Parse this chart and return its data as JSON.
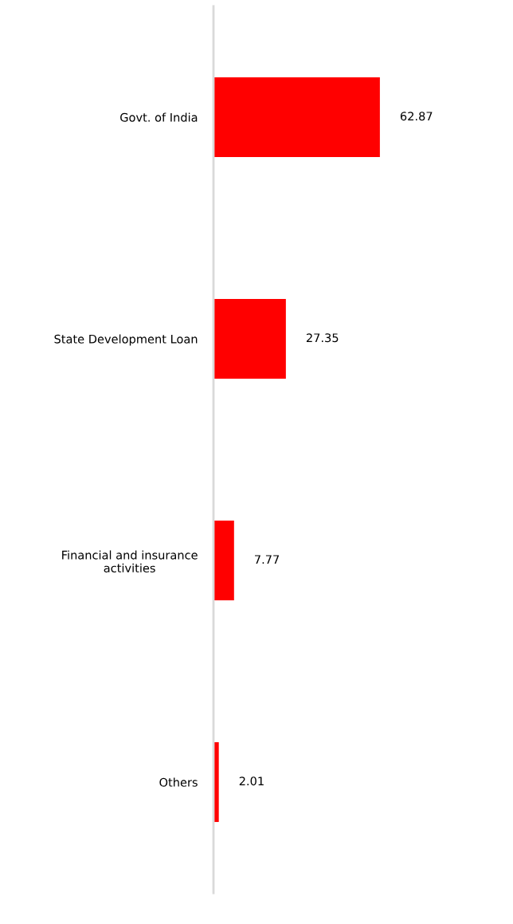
{
  "chart_data": {
    "type": "bar",
    "orientation": "horizontal",
    "categories": [
      "Govt. of India",
      "State Development Loan",
      "Financial and insurance\nactivities",
      "Others"
    ],
    "values": [
      62.87,
      27.35,
      7.77,
      2.01
    ],
    "color": "#ff0000",
    "data_labels": true,
    "grid": false,
    "legend": false
  }
}
